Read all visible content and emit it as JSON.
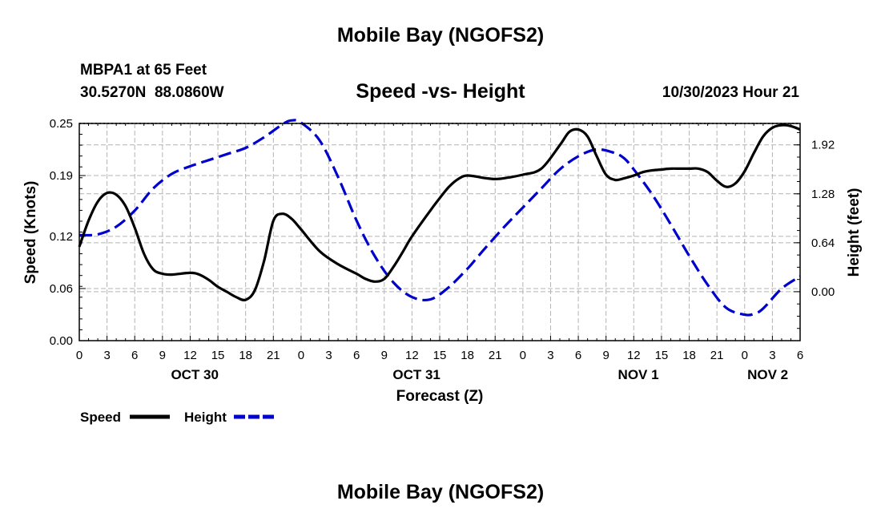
{
  "header": {
    "title": "Mobile Bay (NGOFS2)",
    "station": "MBPA1 at 65 Feet",
    "coords": "30.5270N  88.0860W",
    "subtitle": "Speed -vs- Height",
    "datetime": "10/30/2023 Hour 21"
  },
  "footer": {
    "title": "Mobile Bay (NGOFS2)"
  },
  "colors": {
    "speed": "#000000",
    "height": "#0000cc",
    "grid": "#b4b4b4"
  },
  "chart_data": {
    "type": "line",
    "title": "Speed -vs- Height",
    "xlabel": "Forecast (Z)",
    "ylabel": "Speed (Knots)",
    "y2label": "Height (feet)",
    "xlim": [
      0,
      78
    ],
    "ylim": [
      0.0,
      0.25
    ],
    "y2lim": [
      -0.64,
      2.2
    ],
    "x_ticks": [
      0,
      3,
      6,
      9,
      12,
      15,
      18,
      21,
      24,
      27,
      30,
      33,
      36,
      39,
      42,
      45,
      48,
      51,
      54,
      57,
      60,
      63,
      66,
      69,
      72,
      75,
      78
    ],
    "x_tick_labels": [
      "0",
      "3",
      "6",
      "9",
      "12",
      "15",
      "18",
      "21",
      "0",
      "3",
      "6",
      "9",
      "12",
      "15",
      "18",
      "21",
      "0",
      "3",
      "6",
      "9",
      "12",
      "15",
      "18",
      "21",
      "0",
      "3",
      "6"
    ],
    "y_ticks": [
      0.0,
      0.06,
      0.12,
      0.19,
      0.25
    ],
    "y_tick_labels": [
      "0.00",
      "0.06",
      "0.12",
      "0.19",
      "0.25"
    ],
    "y2_ticks": [
      0.0,
      0.64,
      1.28,
      1.92
    ],
    "y2_tick_labels": [
      "0.00",
      "0.64",
      "1.28",
      "1.92"
    ],
    "day_labels": [
      {
        "x": 12.5,
        "label": "OCT 30"
      },
      {
        "x": 36.5,
        "label": "OCT 31"
      },
      {
        "x": 60.5,
        "label": "NOV 1"
      },
      {
        "x": 74.5,
        "label": "NOV 2"
      }
    ],
    "legend": [
      {
        "name": "Speed",
        "style": "solid"
      },
      {
        "name": "Height",
        "style": "dashed"
      }
    ],
    "series": [
      {
        "name": "Speed",
        "axis": "left",
        "style": "solid",
        "x": [
          0,
          1,
          2,
          3,
          4,
          5,
          6,
          7,
          8,
          9,
          10,
          12,
          13,
          14,
          15,
          16,
          17,
          18,
          19,
          20,
          21,
          22,
          23,
          24,
          26,
          28,
          30,
          31,
          32,
          33,
          34,
          35,
          36,
          38,
          39,
          40,
          41,
          42,
          44,
          45,
          46,
          48,
          50,
          52,
          53,
          54,
          55,
          56,
          57,
          58,
          59,
          60,
          61,
          62,
          63,
          64,
          65,
          66,
          67,
          68,
          69,
          70,
          71,
          72,
          73,
          74,
          75,
          76,
          77,
          78
        ],
        "y": [
          0.108,
          0.138,
          0.16,
          0.17,
          0.168,
          0.155,
          0.13,
          0.1,
          0.082,
          0.077,
          0.076,
          0.078,
          0.076,
          0.07,
          0.062,
          0.056,
          0.05,
          0.047,
          0.058,
          0.092,
          0.138,
          0.146,
          0.14,
          0.128,
          0.103,
          0.088,
          0.077,
          0.071,
          0.068,
          0.071,
          0.085,
          0.102,
          0.12,
          0.15,
          0.164,
          0.177,
          0.186,
          0.19,
          0.187,
          0.186,
          0.187,
          0.191,
          0.198,
          0.225,
          0.24,
          0.243,
          0.235,
          0.212,
          0.191,
          0.185,
          0.187,
          0.19,
          0.194,
          0.196,
          0.197,
          0.198,
          0.198,
          0.198,
          0.198,
          0.194,
          0.184,
          0.177,
          0.181,
          0.195,
          0.216,
          0.235,
          0.245,
          0.248,
          0.247,
          0.243
        ]
      },
      {
        "name": "Height",
        "axis": "right",
        "style": "dashed",
        "x": [
          0,
          2,
          4,
          6,
          8,
          10,
          12,
          14,
          16,
          18,
          20,
          22,
          23,
          24,
          26,
          28,
          30,
          32,
          34,
          36,
          38,
          40,
          42,
          43,
          44,
          46,
          48,
          50,
          52,
          54,
          56,
          58,
          59,
          60,
          62,
          64,
          66,
          68,
          70,
          72,
          73,
          74,
          76,
          78
        ],
        "y": [
          0.74,
          0.75,
          0.85,
          1.06,
          1.35,
          1.54,
          1.64,
          1.72,
          1.8,
          1.88,
          2.02,
          2.19,
          2.24,
          2.21,
          1.98,
          1.5,
          0.93,
          0.46,
          0.12,
          -0.07,
          -0.1,
          0.06,
          0.3,
          0.44,
          0.58,
          0.85,
          1.1,
          1.35,
          1.6,
          1.77,
          1.86,
          1.81,
          1.74,
          1.6,
          1.27,
          0.88,
          0.47,
          0.09,
          -0.21,
          -0.3,
          -0.29,
          -0.22,
          0.04,
          0.2
        ]
      }
    ]
  }
}
